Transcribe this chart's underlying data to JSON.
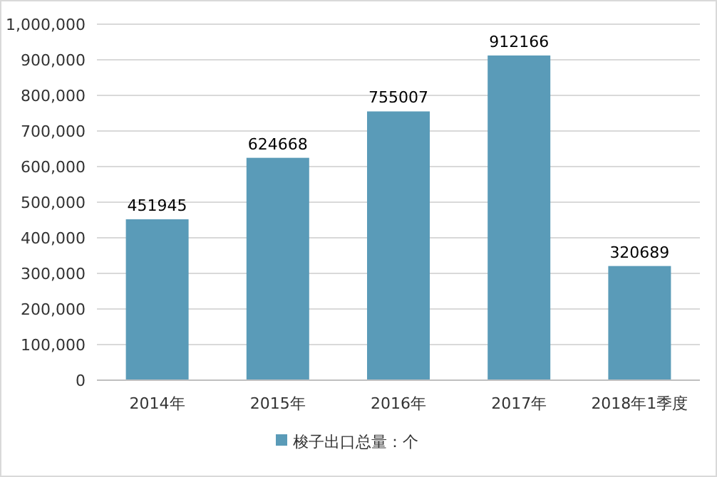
{
  "chart_data": {
    "type": "bar",
    "categories": [
      "2014年",
      "2015年",
      "2016年",
      "2017年",
      "2018年1季度"
    ],
    "series": [
      {
        "name": "梭子出口总量：个",
        "color": "#5a9bb8",
        "values": [
          451945,
          624668,
          755007,
          912166,
          320689
        ]
      }
    ],
    "ylim": [
      0,
      1000000
    ],
    "yticks": [
      0,
      {
        "value": 100000,
        "label": "100,000"
      },
      {
        "value": 200000,
        "label": "200,000"
      },
      {
        "value": 300000,
        "label": "300,000"
      },
      {
        "value": 400000,
        "label": "400,000"
      },
      {
        "value": 500000,
        "label": "500,000"
      },
      {
        "value": 600000,
        "label": "600,000"
      },
      {
        "value": 700000,
        "label": "700,000"
      },
      {
        "value": 800000,
        "label": "800,000"
      },
      {
        "value": 900000,
        "label": "900,000"
      },
      {
        "value": 1000000,
        "label": "1,000,000"
      }
    ],
    "grid": "y",
    "legend": "bottom",
    "data_labels": true
  }
}
